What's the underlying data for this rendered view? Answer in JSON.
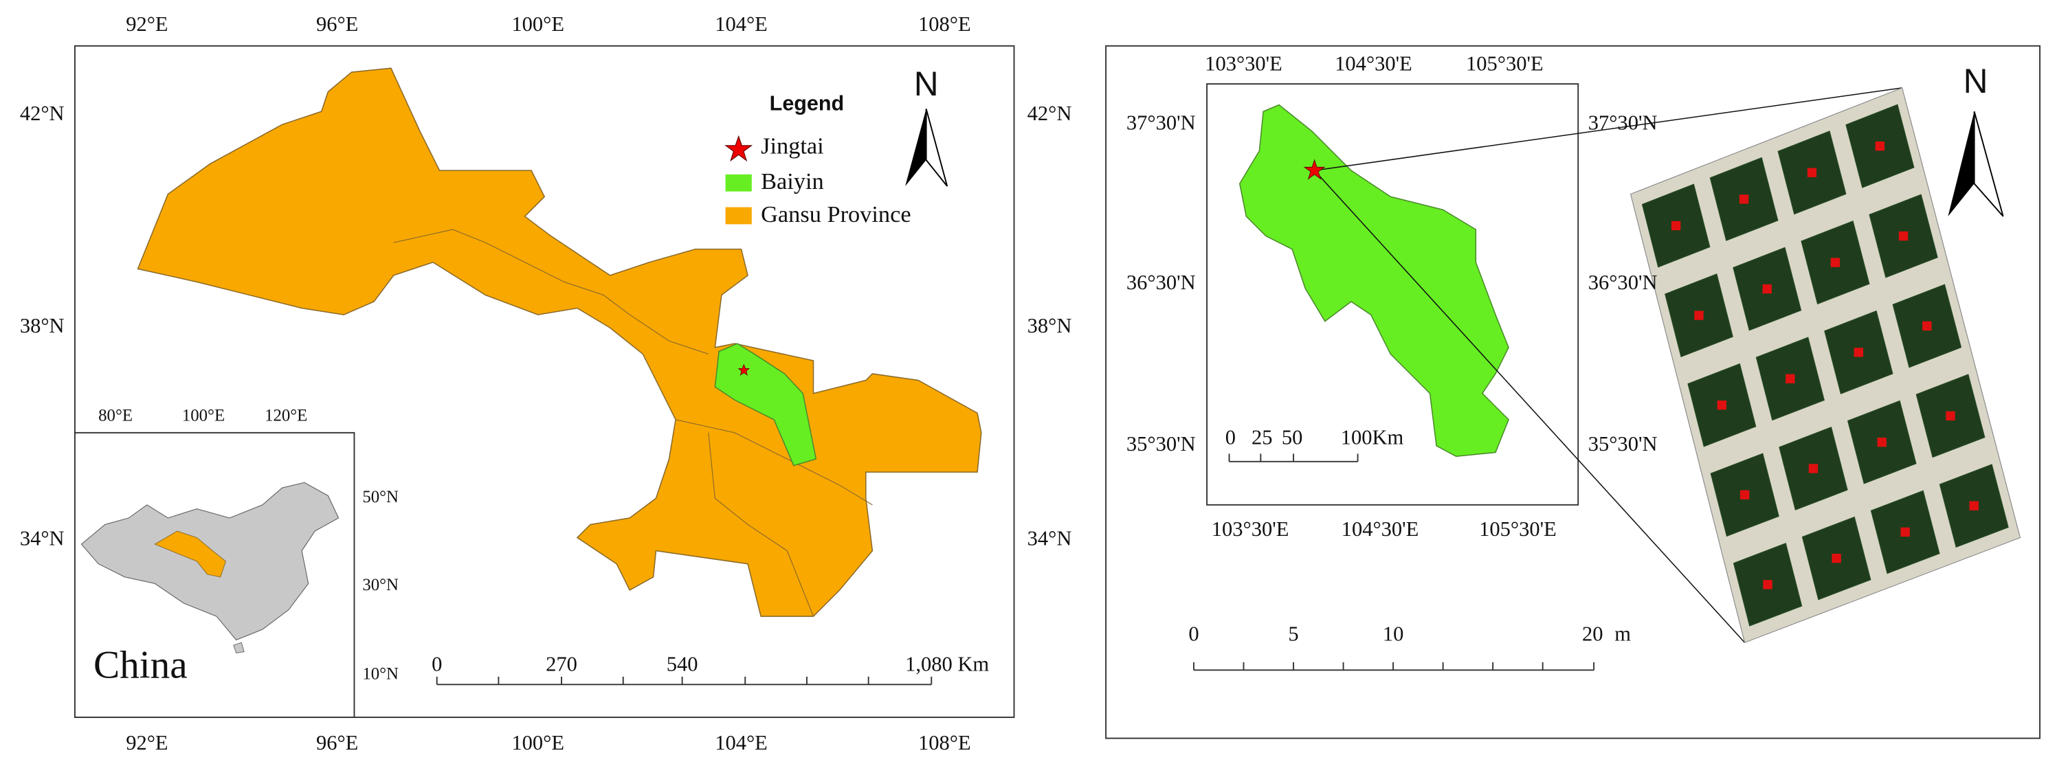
{
  "left_map": {
    "lon_labels_top": [
      "92°E",
      "96°E",
      "100°E",
      "104°E",
      "108°E"
    ],
    "lon_labels_bottom": [
      "92°E",
      "96°E",
      "100°E",
      "104°E",
      "108°E"
    ],
    "lat_labels_left": [
      "42°N",
      "38°N",
      "34°N"
    ],
    "lat_labels_right": [
      "42°N",
      "38°N",
      "34°N"
    ],
    "north": "N",
    "legend": {
      "title": "Legend",
      "items": [
        "Jingtai",
        "Baiyin",
        "Gansu Province"
      ]
    },
    "scale_bar": [
      "0",
      "270",
      "540",
      "1,080 Km"
    ],
    "inset": {
      "lon_labels": [
        "80°E",
        "100°E",
        "120°E"
      ],
      "lat_labels": [
        "50°N",
        "30°N",
        "10°N"
      ],
      "label": "China"
    }
  },
  "right_map": {
    "inset": {
      "lon_labels_top": [
        "103°30'E",
        "104°30'E",
        "105°30'E"
      ],
      "lon_labels_bottom": [
        "103°30'E",
        "104°30'E",
        "105°30'E"
      ],
      "lat_labels_left": [
        "37°30'N",
        "36°30'N",
        "35°30'N"
      ],
      "lat_labels_right": [
        "37°30'N",
        "36°30'N",
        "35°30'N"
      ],
      "scale_bar": [
        "0",
        "25",
        "50",
        "100Km"
      ]
    },
    "north": "N",
    "scale_bar": [
      "0",
      "5",
      "10",
      "20",
      "m"
    ]
  }
}
